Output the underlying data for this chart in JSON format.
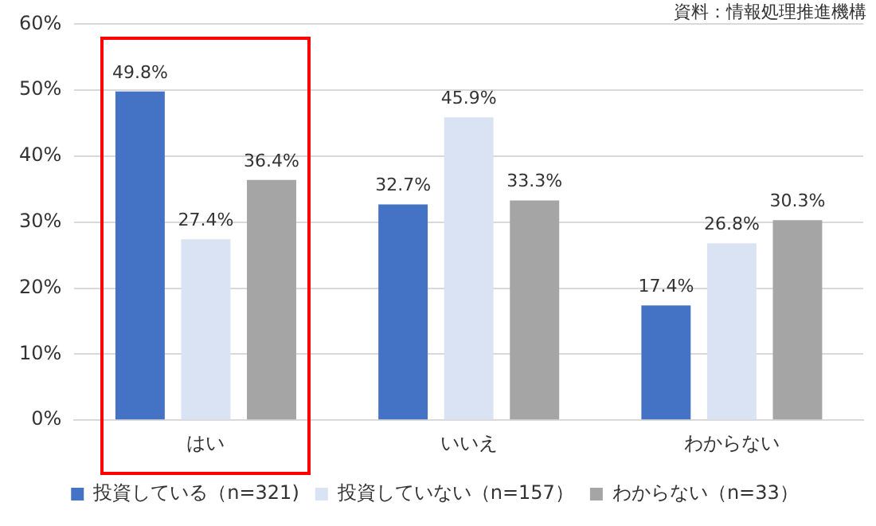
{
  "chart_data": {
    "type": "bar",
    "categories": [
      "はい",
      "いいえ",
      "わからない"
    ],
    "series": [
      {
        "name": "投資している（n=321)",
        "color": "#4472c4",
        "values": [
          49.8,
          32.7,
          17.4
        ],
        "value_labels": [
          "49.8%",
          "32.7%",
          "17.4%"
        ]
      },
      {
        "name": "投資していない（n=157）",
        "color": "#dae3f3",
        "values": [
          27.4,
          45.9,
          26.8
        ],
        "value_labels": [
          "27.4%",
          "45.9%",
          "26.8%"
        ]
      },
      {
        "name": "わからない（n=33）",
        "color": "#a5a5a5",
        "values": [
          36.4,
          33.3,
          30.3
        ],
        "value_labels": [
          "36.4%",
          "33.3%",
          "30.3%"
        ]
      }
    ],
    "ylim": [
      0,
      60
    ],
    "yticks": [
      {
        "value": 0,
        "label": "0%"
      },
      {
        "value": 10,
        "label": "10%"
      },
      {
        "value": 20,
        "label": "20%"
      },
      {
        "value": 30,
        "label": "30%"
      },
      {
        "value": 40,
        "label": "40%"
      },
      {
        "value": 50,
        "label": "50%"
      },
      {
        "value": 60,
        "label": "60%"
      }
    ],
    "grid": "y",
    "legend": "bottom",
    "annotations": [
      "資料：情報処理推進機構"
    ]
  }
}
